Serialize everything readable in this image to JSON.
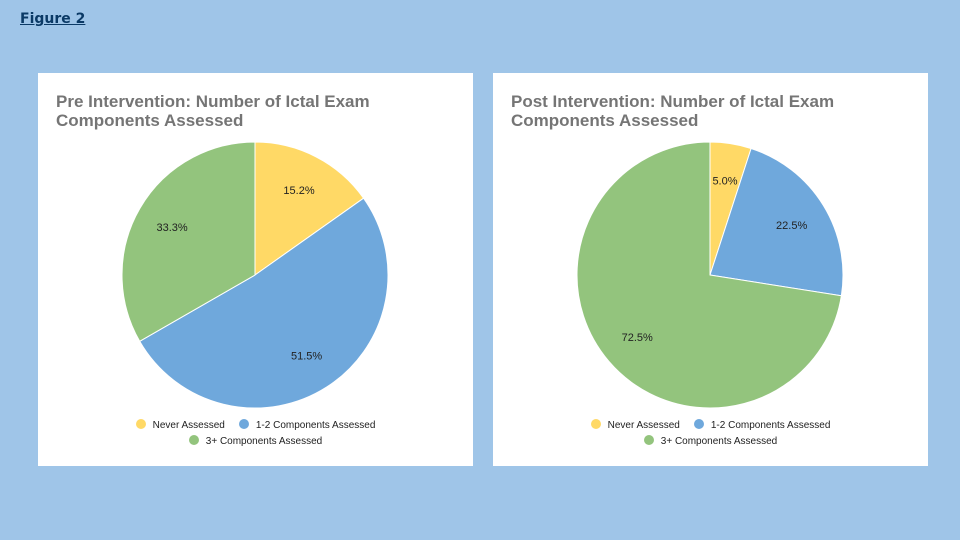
{
  "figure_label": "Figure 2",
  "chart_data": [
    {
      "type": "pie",
      "title": "Pre Intervention: Number of Ictal Exam Components Assessed",
      "categories": [
        "Never Assessed",
        "1-2 Components Assessed",
        "3+ Components Assessed"
      ],
      "values": [
        15.2,
        51.5,
        33.3
      ],
      "labels": [
        "15.2%",
        "51.5%",
        "33.3%"
      ],
      "colors": [
        "#ffd966",
        "#6fa8dc",
        "#93c47d"
      ],
      "legend_position": "bottom"
    },
    {
      "type": "pie",
      "title": "Post Intervention: Number of Ictal Exam Components Assessed",
      "categories": [
        "Never Assessed",
        "1-2 Components Assessed",
        "3+ Components Assessed"
      ],
      "values": [
        5.0,
        22.5,
        72.5
      ],
      "labels": [
        "5.0%",
        "22.5%",
        "72.5%"
      ],
      "colors": [
        "#ffd966",
        "#6fa8dc",
        "#93c47d"
      ],
      "legend_position": "bottom"
    }
  ]
}
